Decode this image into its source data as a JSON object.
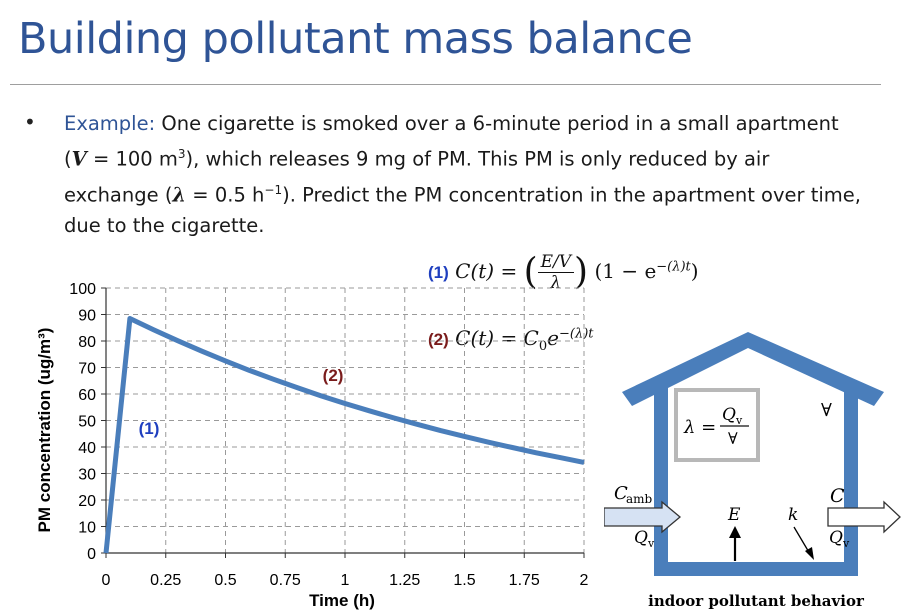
{
  "slide": {
    "title": "Building pollutant mass balance",
    "bullet": {
      "label": "Example:",
      "t1": " One cigarette is smoked over a 6-minute period in a small apartment",
      "t2a": "(",
      "v_sym": "V",
      "t2b": " = 100 m",
      "t2c": "3",
      "t2d": "), which releases 9 mg of PM. This PM is only reduced by air",
      "t3a": "exchange (",
      "lam_sym": "λ",
      "t3b": " = 0.5 h",
      "t3c": "−1",
      "t3d": "). Predict the PM concentration in the apartment over time,",
      "t4": "due to the cigarette."
    }
  },
  "equations": {
    "eq1_tag": "(1)",
    "eq1_lhs": "C(t) =",
    "eq1_num": "E/V",
    "eq1_den": "λ",
    "eq1_rhs": "(1 − e",
    "eq1_exp": "−(λ)t",
    "eq1_close": ")",
    "eq2_tag": "(2)",
    "eq2_lhs": "C(t) = C",
    "eq2_sub": "0",
    "eq2_e": "e",
    "eq2_exp": "−(λ)t"
  },
  "chart_data": {
    "type": "line",
    "xlabel": "Time (h)",
    "ylabel": "PM concentration (ug/m³)",
    "xlim": [
      0,
      2
    ],
    "ylim": [
      0,
      100
    ],
    "x_ticks": [
      "0",
      "0.25",
      "0.5",
      "0.75",
      "1",
      "1.25",
      "1.5",
      "1.75",
      "2"
    ],
    "y_ticks": [
      "0",
      "10",
      "20",
      "30",
      "40",
      "50",
      "60",
      "70",
      "80",
      "90",
      "100"
    ],
    "grid": "dashed",
    "series": [
      {
        "color": "#4a7ebb",
        "x": [
          0,
          0.1,
          0.2,
          0.3,
          0.4,
          0.5,
          0.6,
          0.7,
          0.8,
          0.9,
          1.0,
          1.1,
          1.2,
          1.3,
          1.4,
          1.5,
          1.6,
          1.7,
          1.8,
          1.9,
          2.0
        ],
        "y": [
          0,
          88.5,
          84.2,
          80.1,
          76.2,
          72.5,
          68.9,
          65.6,
          62.4,
          59.3,
          56.4,
          53.7,
          51.1,
          48.6,
          46.2,
          44.0,
          41.8,
          39.8,
          37.8,
          36.0,
          34.2
        ]
      }
    ],
    "annotations": [
      {
        "text": "(1)",
        "x": 0.18,
        "y": 45,
        "color": "#1f3fbf"
      },
      {
        "text": "(2)",
        "x": 0.95,
        "y": 65,
        "color": "#7a1c1c"
      }
    ]
  },
  "diagram": {
    "lambda_lhs": "λ =",
    "lambda_num": "Q",
    "lambda_num_sub": "v",
    "lambda_den": "∀",
    "volume_sym": "∀",
    "c_amb": "C",
    "c_amb_sub": "amb",
    "q_in": "Q",
    "q_in_sub": "v",
    "e_label": "E",
    "k_label": "k",
    "c_label": "C",
    "q_out": "Q",
    "q_out_sub": "v",
    "caption": "indoor pollutant behavior",
    "house_color": "#4a7ebb"
  }
}
